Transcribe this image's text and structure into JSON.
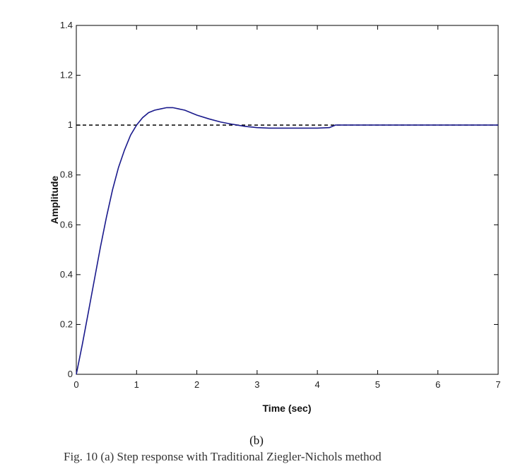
{
  "chart_data": {
    "type": "line",
    "title": "",
    "xlabel": "Time (sec)",
    "ylabel": "Amplitude",
    "xlim": [
      0,
      7
    ],
    "ylim": [
      0,
      1.4
    ],
    "xticks": [
      "0",
      "1",
      "2",
      "3",
      "4",
      "5",
      "6",
      "7"
    ],
    "yticks": [
      "0",
      "0.2",
      "0.4",
      "0.6",
      "0.8",
      "1",
      "1.2",
      "1.4"
    ],
    "grid": false,
    "reference_line": {
      "y": 1.0,
      "style": "dashed"
    },
    "series": [
      {
        "color": "#1a1a8c",
        "x": [
          0,
          0.1,
          0.2,
          0.3,
          0.4,
          0.5,
          0.6,
          0.7,
          0.8,
          0.9,
          1.0,
          1.1,
          1.2,
          1.3,
          1.4,
          1.5,
          1.6,
          1.7,
          1.8,
          1.9,
          2.0,
          2.2,
          2.4,
          2.6,
          2.8,
          3.0,
          3.2,
          3.5,
          3.8,
          4.0,
          4.2,
          4.3,
          4.5,
          5.0,
          5.5,
          6.0,
          6.5,
          7.0
        ],
        "y": [
          0,
          0.12,
          0.25,
          0.38,
          0.51,
          0.63,
          0.74,
          0.83,
          0.9,
          0.96,
          1.0,
          1.03,
          1.05,
          1.06,
          1.065,
          1.07,
          1.07,
          1.065,
          1.06,
          1.05,
          1.04,
          1.025,
          1.012,
          1.003,
          0.995,
          0.99,
          0.988,
          0.988,
          0.988,
          0.988,
          0.99,
          1.0,
          1.0,
          1.0,
          1.0,
          1.0,
          1.0,
          1.0
        ]
      }
    ]
  },
  "sublabel": "(b)",
  "caption": "Fig. 10 (a) Step response with Traditional Ziegler-Nichols method"
}
